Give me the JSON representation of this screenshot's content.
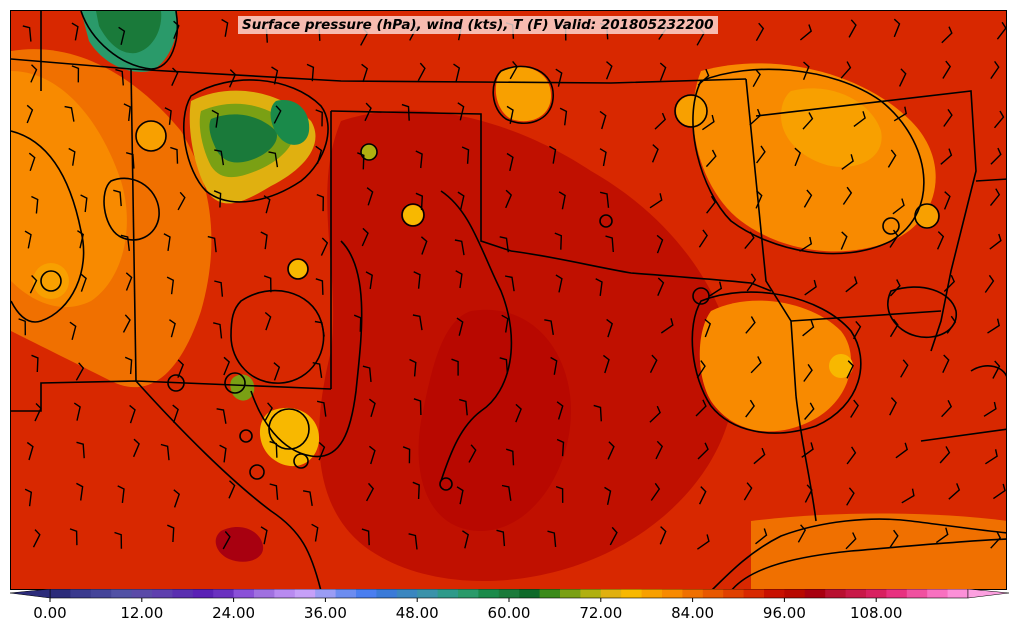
{
  "map": {
    "title": "Surface pressure (hPa), wind (kts), T (F) Valid: 201805232200"
  },
  "colorbar": {
    "ticks": [
      "0.00",
      "12.00",
      "24.00",
      "36.00",
      "48.00",
      "60.00",
      "72.00",
      "84.00",
      "96.00",
      "108.00"
    ],
    "tick_values": [
      0,
      12,
      24,
      36,
      48,
      60,
      72,
      84,
      96,
      108
    ],
    "range": [
      0,
      120
    ],
    "step": 3,
    "colors": [
      "#2b2b7a",
      "#3a3a8e",
      "#444499",
      "#5151a5",
      "#5a4aa8",
      "#5e3fae",
      "#5a2fb0",
      "#5a20b5",
      "#6a30c0",
      "#8a50d8",
      "#a070e0",
      "#b88af0",
      "#c6a0f8",
      "#9a9cf4",
      "#6c8cf0",
      "#4a7ef0",
      "#3a7ad8",
      "#3a86c0",
      "#3a92aa",
      "#2e9a8a",
      "#2a9a6a",
      "#1a8a4a",
      "#1a7a3a",
      "#0e6a2a",
      "#3a8a1a",
      "#7aa014",
      "#b0b010",
      "#e0b010",
      "#f8b800",
      "#f8a000",
      "#f88a00",
      "#f07000",
      "#e85800",
      "#e04000",
      "#d82800",
      "#c81000",
      "#b80800",
      "#a80010",
      "#b81030",
      "#c81848",
      "#d82060",
      "#e83080",
      "#f050a0",
      "#f870c0",
      "#fc90d8"
    ]
  }
}
